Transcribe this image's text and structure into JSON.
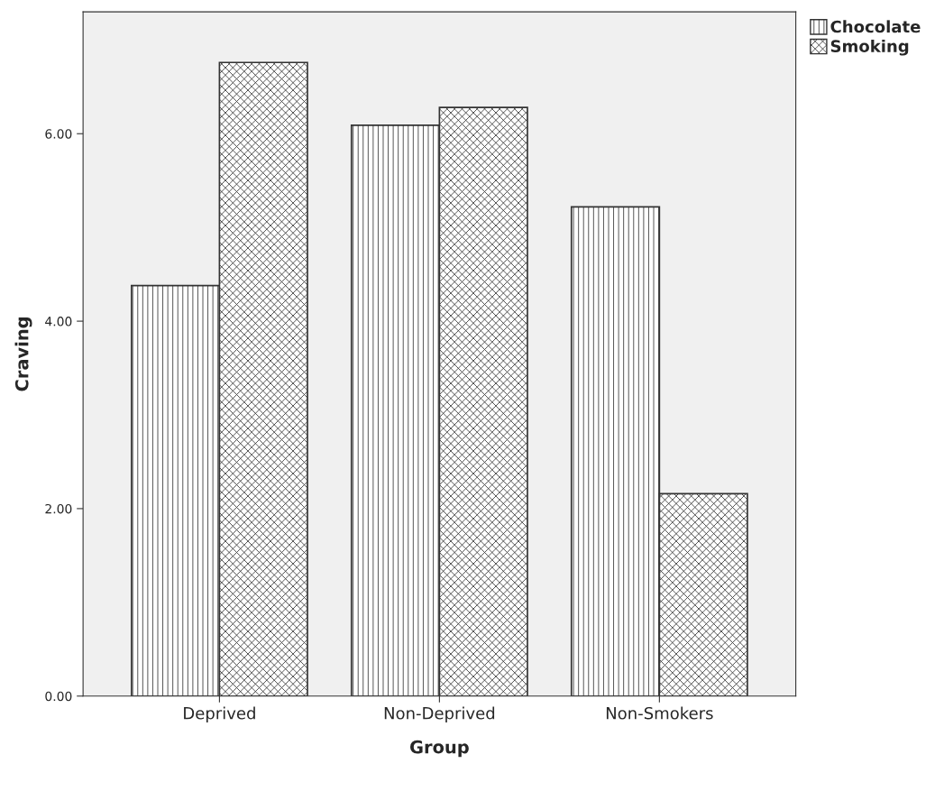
{
  "chart_data": {
    "type": "bar",
    "xlabel": "Group",
    "ylabel": "Craving",
    "categories": [
      "Deprived",
      "Non-Deprived",
      "Non-Smokers"
    ],
    "series": [
      {
        "name": "Chocolate",
        "color": "#333333",
        "values": [
          4.38,
          6.09,
          5.22
        ]
      },
      {
        "name": "Smoking",
        "color": "#333333",
        "values": [
          6.76,
          6.28,
          2.16
        ]
      }
    ],
    "ylim": [
      0,
      7.3
    ],
    "yticks": [
      {
        "value": 0,
        "label": "0.00"
      },
      {
        "value": 2,
        "label": "2.00"
      },
      {
        "value": 4,
        "label": "4.00"
      },
      {
        "value": 6,
        "label": "6.00"
      }
    ],
    "grid": false,
    "legend": "top right"
  }
}
